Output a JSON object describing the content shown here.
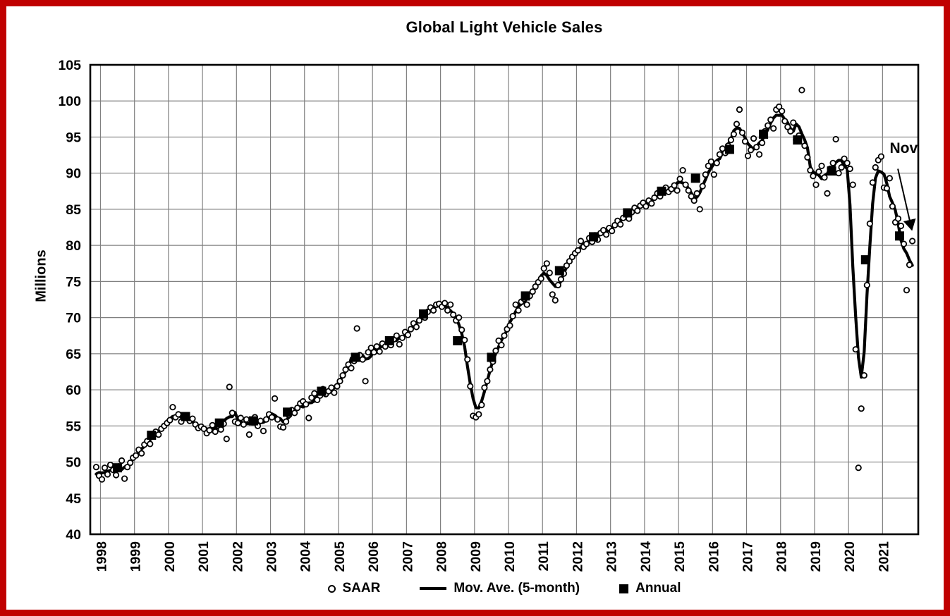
{
  "page": {
    "border_color": "#C00000",
    "background": "#FFFFFF"
  },
  "chart_data": {
    "type": "line",
    "title": "Global Light Vehicle Sales",
    "ylabel": "Millions",
    "ylim": [
      40,
      105
    ],
    "yticks": [
      40,
      45,
      50,
      55,
      60,
      65,
      70,
      75,
      80,
      85,
      90,
      95,
      100,
      105
    ],
    "xlim": [
      1997.7,
      2022.05
    ],
    "xticks": [
      1998,
      1999,
      2000,
      2001,
      2002,
      2003,
      2004,
      2005,
      2006,
      2007,
      2008,
      2009,
      2010,
      2011,
      2012,
      2013,
      2014,
      2015,
      2016,
      2017,
      2018,
      2019,
      2020,
      2021
    ],
    "grid": true,
    "grid_color": "#808080",
    "axis_color": "#000000",
    "legend_position": "bottom",
    "legend": [
      {
        "marker": "circle",
        "label": "SAAR"
      },
      {
        "marker": "line",
        "label": "Mov. Ave. (5-month)"
      },
      {
        "marker": "square",
        "label": "Annual"
      }
    ],
    "series": [
      {
        "name": "SAAR",
        "type": "scatter",
        "marker": "open-circle",
        "start_month": "1997-11",
        "monthly_values": [
          49.3,
          48.1,
          47.6,
          49.2,
          48.3,
          49.6,
          48.9,
          48.2,
          49.4,
          50.2,
          47.7,
          49.3,
          49.9,
          50.6,
          50.9,
          51.7,
          51.2,
          52.4,
          52.9,
          52.5,
          53.6,
          54.2,
          53.8,
          54.6,
          55.0,
          55.4,
          55.8,
          57.6,
          56.2,
          56.6,
          55.6,
          56.4,
          56.1,
          55.7,
          56.0,
          55.2,
          54.7,
          54.9,
          54.6,
          54.0,
          54.4,
          55.1,
          54.2,
          55.0,
          54.5,
          55.3,
          53.2,
          60.4,
          56.8,
          55.6,
          55.4,
          56.1,
          55.2,
          55.9,
          53.8,
          55.5,
          56.2,
          55.0,
          55.7,
          54.3,
          55.9,
          56.6,
          56.2,
          58.8,
          55.9,
          54.9,
          54.8,
          55.6,
          56.5,
          57.2,
          56.8,
          57.5,
          58.1,
          58.4,
          58.0,
          56.1,
          58.9,
          59.5,
          58.6,
          59.2,
          60.1,
          59.4,
          59.8,
          60.3,
          59.6,
          60.5,
          61.2,
          62.0,
          62.8,
          63.5,
          63.0,
          64.0,
          68.5,
          64.8,
          64.2,
          61.2,
          65.2,
          65.8,
          65.2,
          66.0,
          65.3,
          66.4,
          66.0,
          66.8,
          66.2,
          67.0,
          67.5,
          66.3,
          67.2,
          68.0,
          67.6,
          68.4,
          69.2,
          68.7,
          69.6,
          70.4,
          70.0,
          70.8,
          71.4,
          71.0,
          71.8,
          71.9,
          71.5,
          72.0,
          71.0,
          71.8,
          70.4,
          69.6,
          70.0,
          68.3,
          66.9,
          64.2,
          60.5,
          56.4,
          56.2,
          56.6,
          57.9,
          60.3,
          61.2,
          62.8,
          63.9,
          65.4,
          66.8,
          66.2,
          67.5,
          68.4,
          68.9,
          70.2,
          71.8,
          71.0,
          72.2,
          72.6,
          71.8,
          73.0,
          73.6,
          74.3,
          74.9,
          75.4,
          76.8,
          77.5,
          76.2,
          73.2,
          72.4,
          74.5,
          75.3,
          76.1,
          77.2,
          77.8,
          78.4,
          78.9,
          79.3,
          80.6,
          79.8,
          80.2,
          81.0,
          80.5,
          81.4,
          80.8,
          81.7,
          82.1,
          81.5,
          82.4,
          82.0,
          82.8,
          83.4,
          82.9,
          83.8,
          84.3,
          83.7,
          84.6,
          85.2,
          84.8,
          85.5,
          85.9,
          85.4,
          86.2,
          85.8,
          86.6,
          87.2,
          86.8,
          87.5,
          88.0,
          87.4,
          87.8,
          88.3,
          87.6,
          89.2,
          90.4,
          88.4,
          87.6,
          86.8,
          86.2,
          87.2,
          85.0,
          88.2,
          89.8,
          91.0,
          91.6,
          89.8,
          91.4,
          92.6,
          93.4,
          92.8,
          93.8,
          94.6,
          95.4,
          96.8,
          98.8,
          95.6,
          94.4,
          92.4,
          93.2,
          94.8,
          93.6,
          92.6,
          94.2,
          95.8,
          96.6,
          97.4,
          96.2,
          98.8,
          99.2,
          98.6,
          97.2,
          96.4,
          95.8,
          97.0,
          94.6,
          95.2,
          101.5,
          93.8,
          92.2,
          90.4,
          89.6,
          88.4,
          90.2,
          91.0,
          89.4,
          87.2,
          90.6,
          91.4,
          94.7,
          90.0,
          90.8,
          92.0,
          91.4,
          90.6,
          88.4,
          65.6,
          49.2,
          57.4,
          62.0,
          74.5,
          83.0,
          88.7,
          90.8,
          91.8,
          92.3,
          88.0,
          87.9,
          89.3,
          85.4,
          83.2,
          83.7,
          82.7,
          80.2,
          73.8,
          77.3,
          80.6
        ]
      },
      {
        "name": "Mov. Ave. (5-month)",
        "type": "line",
        "derived_from": "SAAR",
        "window_months": 5
      },
      {
        "name": "Annual",
        "type": "scatter",
        "marker": "filled-square",
        "years": [
          1998,
          1999,
          2000,
          2001,
          2002,
          2003,
          2004,
          2005,
          2006,
          2007,
          2008,
          2009,
          2010,
          2011,
          2012,
          2013,
          2014,
          2015,
          2016,
          2017,
          2018,
          2019,
          2020,
          2021
        ],
        "values": [
          49.2,
          53.7,
          56.3,
          55.4,
          55.7,
          56.9,
          59.8,
          64.5,
          66.8,
          70.5,
          66.8,
          64.5,
          73.0,
          76.5,
          81.2,
          84.5,
          87.5,
          89.3,
          93.3,
          95.4,
          94.6,
          90.3,
          78.0,
          81.3
        ]
      }
    ],
    "annotation": {
      "label": "Nov",
      "label_x": 2021.62,
      "label_y": 92.8,
      "arrow_from_x": 2021.45,
      "arrow_from_y": 90.6,
      "arrow_to_x": 2021.86,
      "arrow_to_y": 82.2
    }
  }
}
